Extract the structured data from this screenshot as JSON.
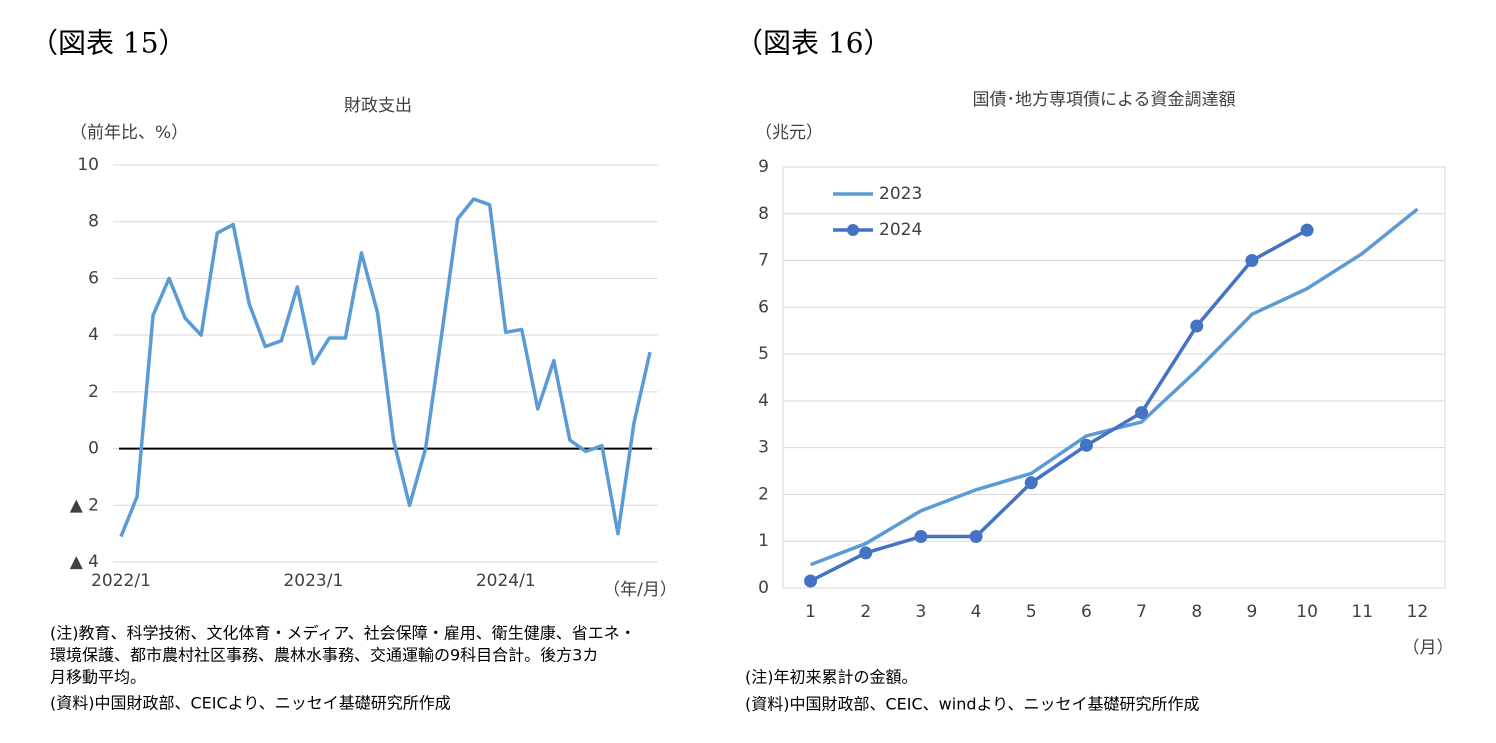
{
  "chart_data": [
    {
      "type": "line",
      "figure_label": "（図表 15）",
      "title": "財政支出",
      "y_label": "（前年比、%）",
      "x_label": "（年/月）",
      "categories": [
        "2022/1",
        null,
        null,
        null,
        null,
        null,
        null,
        null,
        null,
        null,
        null,
        null,
        "2023/1",
        null,
        null,
        null,
        null,
        null,
        null,
        null,
        null,
        null,
        null,
        null,
        "2024/1",
        null,
        null,
        null,
        null,
        null,
        null,
        null,
        null,
        null
      ],
      "series": [
        {
          "name": "財政支出",
          "color": "#5b9bd5",
          "values": [
            -3.1,
            -1.7,
            4.7,
            6.0,
            4.6,
            4.0,
            7.6,
            7.9,
            5.1,
            3.6,
            3.8,
            5.7,
            3.0,
            3.9,
            3.9,
            6.9,
            4.8,
            0.3,
            -2.0,
            0.0,
            4.0,
            8.1,
            8.8,
            8.6,
            4.1,
            4.2,
            1.4,
            3.1,
            0.3,
            -0.1,
            0.1,
            -3.0,
            0.9,
            3.4
          ]
        }
      ],
      "ylim": [
        -4,
        10
      ],
      "yticks": [
        {
          "value": -4,
          "label": "▲ 4"
        },
        {
          "value": -2,
          "label": "▲ 2"
        },
        0,
        2,
        4,
        6,
        8,
        10
      ],
      "grid": true,
      "zero_line": true,
      "notes": [
        "(注)教育、科学技術、文化体育・メディア、社会保障・雇用、衛生健康、省エネ・",
        "環境保護、都市農村社区事務、農林水事務、交通運輸の9科目合計。後方3カ",
        "月移動平均。",
        "(資料)中国財政部、CEICより、ニッセイ基礎研究所作成"
      ]
    },
    {
      "type": "line",
      "figure_label": "（図表 16）",
      "title": "国債･地方専項債による資金調達額",
      "y_label": "（兆元）",
      "x_label": "（月）",
      "x": [
        1,
        2,
        3,
        4,
        5,
        6,
        7,
        8,
        9,
        10,
        11,
        12
      ],
      "xlim": [
        0.5,
        12.5
      ],
      "xticks": [
        1,
        2,
        3,
        4,
        5,
        6,
        7,
        8,
        9,
        10,
        11,
        12
      ],
      "series": [
        {
          "name": "2023",
          "color": "#5b9bd5",
          "markers": false,
          "values": [
            0.5,
            0.95,
            1.65,
            2.1,
            2.45,
            3.25,
            3.55,
            4.65,
            5.85,
            6.4,
            7.15,
            8.1
          ]
        },
        {
          "name": "2024",
          "color": "#4472c4",
          "markers": true,
          "values": [
            0.15,
            0.75,
            1.1,
            1.1,
            2.25,
            3.05,
            3.75,
            5.6,
            7.0,
            7.65,
            null,
            null
          ]
        }
      ],
      "ylim": [
        0,
        9
      ],
      "yticks": [
        0,
        1,
        2,
        3,
        4,
        5,
        6,
        7,
        8,
        9
      ],
      "grid": true,
      "legend": "top-left",
      "notes": [
        "(注)年初来累計の金額。",
        "(資料)中国財政部、CEIC、windより、ニッセイ基礎研究所作成"
      ]
    }
  ]
}
